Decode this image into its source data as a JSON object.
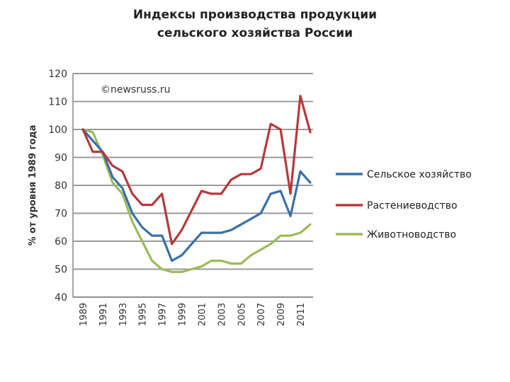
{
  "chart_data": {
    "type": "line",
    "title_lines": [
      "Индексы производства продукции",
      "сельского хозяйства России"
    ],
    "ylabel": "% от уровня 1989 года",
    "xlabel": "",
    "watermark": "©newsruss.ru",
    "ylim": [
      40,
      120
    ],
    "yticks": [
      40,
      50,
      60,
      70,
      80,
      90,
      100,
      110,
      120
    ],
    "grid": true,
    "legend_position": "right",
    "x": [
      1989,
      1990,
      1991,
      1992,
      1993,
      1994,
      1995,
      1996,
      1997,
      1998,
      1999,
      2000,
      2001,
      2002,
      2003,
      2004,
      2005,
      2006,
      2007,
      2008,
      2009,
      2010,
      2011,
      2012
    ],
    "xtick_labels": [
      "1989",
      "1991",
      "1993",
      "1995",
      "1997",
      "1999",
      "2001",
      "2003",
      "2005",
      "2007",
      "2009",
      "2011"
    ],
    "series": [
      {
        "name": "Сельское хозяйство",
        "color": "#3a6fa6",
        "values": [
          100,
          96,
          92,
          83,
          79,
          70,
          65,
          62,
          62,
          53,
          55,
          59,
          63,
          63,
          63,
          64,
          66,
          68,
          70,
          77,
          78,
          69,
          85,
          81
        ]
      },
      {
        "name": "Растениеводство",
        "color": "#b5393b",
        "values": [
          100,
          92,
          92,
          87,
          85,
          77,
          73,
          73,
          77,
          59,
          64,
          71,
          78,
          77,
          77,
          82,
          84,
          84,
          86,
          102,
          100,
          77,
          112,
          99
        ]
      },
      {
        "name": "Животноводство",
        "color": "#9cbb59",
        "values": [
          100,
          99,
          91,
          81,
          77,
          67,
          60,
          53,
          50,
          49,
          49,
          50,
          51,
          53,
          53,
          52,
          52,
          55,
          57,
          59,
          62,
          62,
          63,
          66
        ]
      }
    ]
  }
}
